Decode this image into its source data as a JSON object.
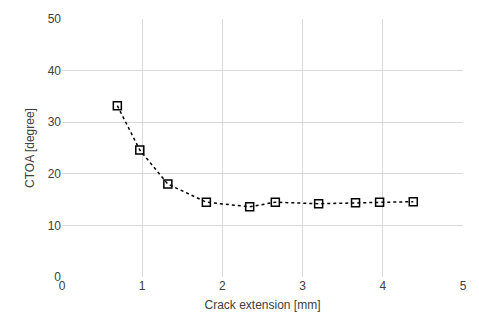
{
  "chart_data": {
    "type": "line",
    "x_label": "Crack extension [mm]",
    "y_label": "CTOA [degree]",
    "x": [
      0.69,
      0.97,
      1.32,
      1.8,
      2.34,
      2.66,
      3.2,
      3.66,
      3.96,
      4.38
    ],
    "values": [
      33.2,
      24.6,
      18.0,
      14.5,
      13.6,
      14.5,
      14.2,
      14.4,
      14.5,
      14.6
    ],
    "color": "#000000",
    "marker": "square-open",
    "line_style": "dotted",
    "xlim": [
      0,
      5
    ],
    "xticks": [
      0,
      1,
      2,
      3,
      4,
      5
    ],
    "ylim": [
      0,
      50
    ],
    "yticks": [
      0,
      10,
      20,
      30,
      40,
      50
    ],
    "grid": true
  }
}
